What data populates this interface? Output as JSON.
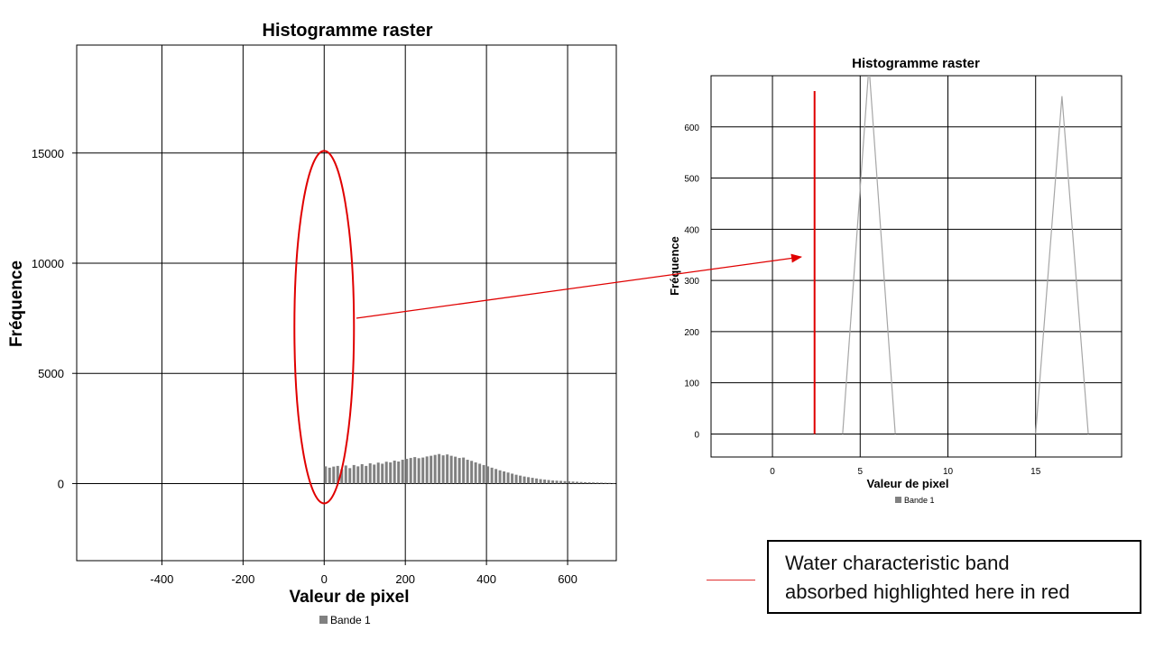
{
  "colors": {
    "highlight": "#e00000",
    "bars": "#808080",
    "grid": "#000000",
    "legend_swatch": "#808080"
  },
  "chart_data": [
    {
      "type": "bar",
      "title": "Histogramme raster",
      "xlabel": "Valeur de pixel",
      "ylabel": "Fréquence",
      "xlim": [
        -610,
        720
      ],
      "ylim": [
        -3500,
        19900
      ],
      "xticks": [
        -400,
        -200,
        0,
        200,
        400,
        600
      ],
      "yticks": [
        0,
        5000,
        10000,
        15000
      ],
      "grid": true,
      "legend": "Bande 1",
      "legend_position": "bottom",
      "series": [
        {
          "name": "Bande 1",
          "x": [
            0,
            10,
            20,
            30,
            40,
            50,
            60,
            70,
            80,
            90,
            100,
            110,
            120,
            130,
            140,
            150,
            160,
            170,
            180,
            190,
            200,
            210,
            220,
            230,
            240,
            250,
            260,
            270,
            280,
            290,
            300,
            310,
            320,
            330,
            340,
            350,
            360,
            370,
            380,
            390,
            400,
            410,
            420,
            430,
            440,
            450,
            460,
            470,
            480,
            490,
            500,
            510,
            520,
            530,
            540,
            550,
            560,
            570,
            580,
            590,
            600,
            610,
            620,
            630,
            640,
            650,
            660,
            670,
            680,
            690,
            700,
            710
          ],
          "values": [
            780,
            720,
            770,
            800,
            650,
            820,
            700,
            840,
            780,
            880,
            800,
            920,
            860,
            950,
            900,
            990,
            960,
            1040,
            1000,
            1080,
            1120,
            1160,
            1200,
            1150,
            1180,
            1230,
            1260,
            1300,
            1340,
            1280,
            1320,
            1260,
            1220,
            1160,
            1180,
            1080,
            1030,
            960,
            900,
            840,
            780,
            720,
            660,
            600,
            550,
            500,
            450,
            400,
            360,
            320,
            290,
            260,
            230,
            200,
            180,
            160,
            140,
            130,
            120,
            110,
            100,
            90,
            80,
            70,
            60,
            55,
            50,
            45,
            40,
            35,
            30,
            25
          ]
        }
      ],
      "annotations": [
        {
          "type": "ellipse",
          "x": 0,
          "y_range": [
            -900,
            15100
          ],
          "color": "#e00000"
        }
      ]
    },
    {
      "type": "line",
      "title": "Histogramme raster",
      "xlabel": "Valeur de pixel",
      "ylabel": "Fréquence",
      "xlim": [
        -3.5,
        19.9
      ],
      "ylim": [
        -45,
        700
      ],
      "xticks": [
        0,
        5,
        10,
        15
      ],
      "yticks": [
        0,
        100,
        200,
        300,
        400,
        500,
        600
      ],
      "grid": true,
      "legend": "Bande 1",
      "legend_position": "bottom",
      "series": [
        {
          "name": "Bande 1",
          "x": [
            4,
            5.5,
            7,
            15,
            16.5,
            18
          ],
          "values": [
            0,
            720,
            0,
            0,
            660,
            0
          ]
        }
      ],
      "highlight_line": {
        "x": 2.4,
        "y_range": [
          0,
          670
        ],
        "color": "#e00000"
      }
    }
  ],
  "note": {
    "line1": "Water characteristic band",
    "line2": "absorbed highlighted here in red"
  }
}
